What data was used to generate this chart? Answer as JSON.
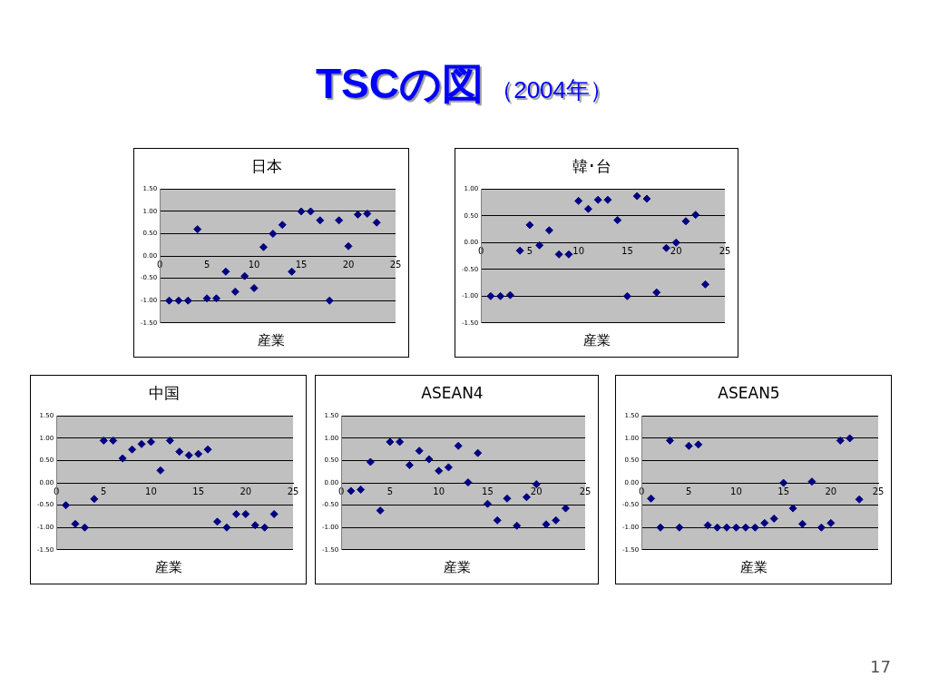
{
  "chart_data": [
    {
      "type": "other",
      "title": "TSCの図",
      "subtitle": "（2004年）",
      "annotations": [
        "17"
      ]
    },
    {
      "type": "scatter",
      "title": "日本",
      "xlabel": "産業",
      "marker": "diamond",
      "grid": "y",
      "x": [
        1,
        2,
        3,
        4,
        5,
        6,
        7,
        8,
        9,
        10,
        11,
        12,
        13,
        14,
        15,
        16,
        17,
        18,
        19,
        20,
        21,
        22,
        23
      ],
      "series": [
        {
          "color": "#000080",
          "values": [
            -1.0,
            -1.0,
            -1.0,
            0.6,
            -0.95,
            -0.95,
            -0.35,
            -0.8,
            -0.45,
            -0.72,
            0.2,
            0.5,
            0.7,
            -0.35,
            1.0,
            1.0,
            0.8,
            -1.0,
            0.8,
            0.22,
            0.93,
            0.95,
            0.75
          ]
        }
      ],
      "xlim": [
        0,
        25
      ],
      "xticks": [
        0,
        5,
        10,
        15,
        20,
        25
      ],
      "ylim": [
        -1.5,
        1.5
      ],
      "yticks": [
        {
          "value": -1.5,
          "label": "-1.50"
        },
        {
          "value": -1.0,
          "label": "-1.00"
        },
        {
          "value": -0.5,
          "label": "-0.50"
        },
        {
          "value": 0,
          "label": "0.00"
        },
        {
          "value": 0.5,
          "label": "0.50"
        },
        {
          "value": 1.0,
          "label": "1.00"
        },
        {
          "value": 1.5,
          "label": "1.50"
        }
      ]
    },
    {
      "type": "scatter",
      "title": "韓･台",
      "xlabel": "産業",
      "marker": "diamond",
      "grid": "y",
      "x": [
        1,
        2,
        3,
        4,
        5,
        6,
        7,
        8,
        9,
        10,
        11,
        12,
        13,
        14,
        15,
        16,
        17,
        18,
        19,
        20,
        21,
        22,
        23
      ],
      "series": [
        {
          "color": "#000080",
          "values": [
            -1.0,
            -1.0,
            -0.98,
            -0.15,
            0.33,
            -0.05,
            0.23,
            -0.22,
            -0.22,
            0.78,
            0.63,
            0.8,
            0.8,
            0.42,
            -1.0,
            0.87,
            0.82,
            -0.93,
            -0.1,
            0.0,
            0.4,
            0.52,
            -0.78
          ]
        }
      ],
      "xlim": [
        0,
        25
      ],
      "xticks": [
        0,
        5,
        10,
        15,
        20,
        25
      ],
      "ylim": [
        -1.5,
        1.0
      ],
      "yticks": [
        {
          "value": -1.5,
          "label": "-1.50"
        },
        {
          "value": -1.0,
          "label": "-1.00"
        },
        {
          "value": -0.5,
          "label": "-0.50"
        },
        {
          "value": 0,
          "label": "0.00"
        },
        {
          "value": 0.5,
          "label": "0.50"
        },
        {
          "value": 1.0,
          "label": "1.00"
        }
      ]
    },
    {
      "type": "scatter",
      "title": "中国",
      "xlabel": "産業",
      "marker": "diamond",
      "grid": "y",
      "x": [
        1,
        2,
        3,
        4,
        5,
        6,
        7,
        8,
        9,
        10,
        11,
        12,
        13,
        14,
        15,
        16,
        17,
        18,
        19,
        20,
        21,
        22,
        23
      ],
      "series": [
        {
          "color": "#000080",
          "values": [
            -0.5,
            -0.92,
            -1.0,
            -0.36,
            0.95,
            0.95,
            0.55,
            0.75,
            0.87,
            0.92,
            0.28,
            0.95,
            0.7,
            0.62,
            0.65,
            0.75,
            -0.87,
            -1.0,
            -0.7,
            -0.7,
            -0.95,
            -1.0,
            -0.7
          ]
        }
      ],
      "xlim": [
        0,
        25
      ],
      "xticks": [
        0,
        5,
        10,
        15,
        20,
        25
      ],
      "ylim": [
        -1.5,
        1.5
      ],
      "yticks": [
        {
          "value": -1.5,
          "label": "-1.50"
        },
        {
          "value": -1.0,
          "label": "-1.00"
        },
        {
          "value": -0.5,
          "label": "-0.50"
        },
        {
          "value": 0,
          "label": "0.00"
        },
        {
          "value": 0.5,
          "label": "0.50"
        },
        {
          "value": 1.0,
          "label": "1.00"
        },
        {
          "value": 1.5,
          "label": "1.50"
        }
      ]
    },
    {
      "type": "scatter",
      "title": "ASEAN4",
      "xlabel": "産業",
      "marker": "diamond",
      "grid": "y",
      "x": [
        1,
        2,
        3,
        4,
        5,
        6,
        7,
        8,
        9,
        10,
        11,
        12,
        13,
        14,
        15,
        16,
        17,
        18,
        19,
        20,
        21,
        22,
        23
      ],
      "series": [
        {
          "color": "#000080",
          "values": [
            -0.18,
            -0.15,
            0.47,
            -0.62,
            0.92,
            0.92,
            0.4,
            0.72,
            0.53,
            0.27,
            0.35,
            0.83,
            0.01,
            0.67,
            -0.47,
            -0.84,
            -0.35,
            -0.96,
            -0.32,
            -0.03,
            -0.93,
            -0.84,
            -0.57
          ]
        }
      ],
      "xlim": [
        0,
        25
      ],
      "xticks": [
        0,
        5,
        10,
        15,
        20,
        25
      ],
      "ylim": [
        -1.5,
        1.5
      ],
      "yticks": [
        {
          "value": -1.5,
          "label": "-1.50"
        },
        {
          "value": -1.0,
          "label": "-1.00"
        },
        {
          "value": -0.5,
          "label": "-0.50"
        },
        {
          "value": 0,
          "label": "0.00"
        },
        {
          "value": 0.5,
          "label": "0.50"
        },
        {
          "value": 1.0,
          "label": "1.00"
        },
        {
          "value": 1.5,
          "label": "1.50"
        }
      ]
    },
    {
      "type": "scatter",
      "title": "ASEAN5",
      "xlabel": "産業",
      "marker": "diamond",
      "grid": "y",
      "x": [
        1,
        2,
        3,
        4,
        5,
        6,
        7,
        8,
        9,
        10,
        11,
        12,
        13,
        14,
        15,
        16,
        17,
        18,
        19,
        20,
        21,
        22,
        23
      ],
      "series": [
        {
          "color": "#000080",
          "values": [
            -0.35,
            -1.0,
            0.95,
            -1.0,
            0.83,
            0.86,
            -0.95,
            -1.0,
            -1.0,
            -1.0,
            -1.0,
            -1.0,
            -0.9,
            -0.8,
            0.0,
            -0.57,
            -0.92,
            0.03,
            -1.0,
            -0.9,
            0.95,
            1.0,
            -0.37
          ]
        }
      ],
      "xlim": [
        0,
        25
      ],
      "xticks": [
        0,
        5,
        10,
        15,
        20,
        25
      ],
      "ylim": [
        -1.5,
        1.5
      ],
      "yticks": [
        {
          "value": -1.5,
          "label": "-1.50"
        },
        {
          "value": -1.0,
          "label": "-1.00"
        },
        {
          "value": -0.5,
          "label": "-0.50"
        },
        {
          "value": 0,
          "label": "0.00"
        },
        {
          "value": 0.5,
          "label": "0.50"
        },
        {
          "value": 1.0,
          "label": "1.00"
        },
        {
          "value": 1.5,
          "label": "1.50"
        }
      ]
    }
  ]
}
